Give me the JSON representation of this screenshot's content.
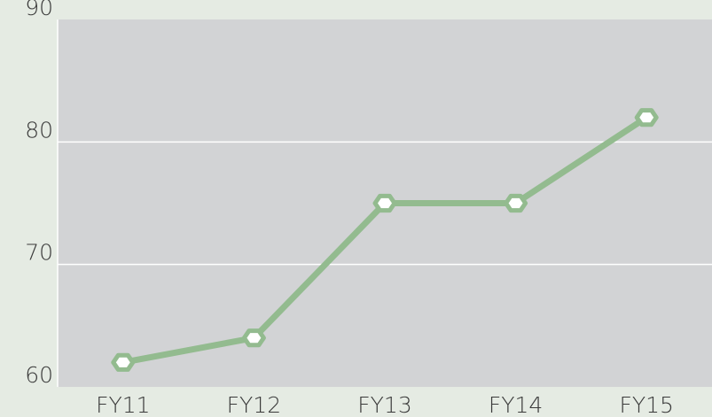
{
  "chart_data": {
    "type": "line",
    "categories": [
      "FY11",
      "FY12",
      "FY13",
      "FY14",
      "FY15"
    ],
    "series": [
      {
        "color": "#93bb8f",
        "values": [
          62,
          64,
          75,
          75,
          82
        ]
      }
    ],
    "ylim": [
      60,
      90
    ],
    "yticks": [
      60,
      70,
      80,
      90
    ],
    "grid": true
  }
}
